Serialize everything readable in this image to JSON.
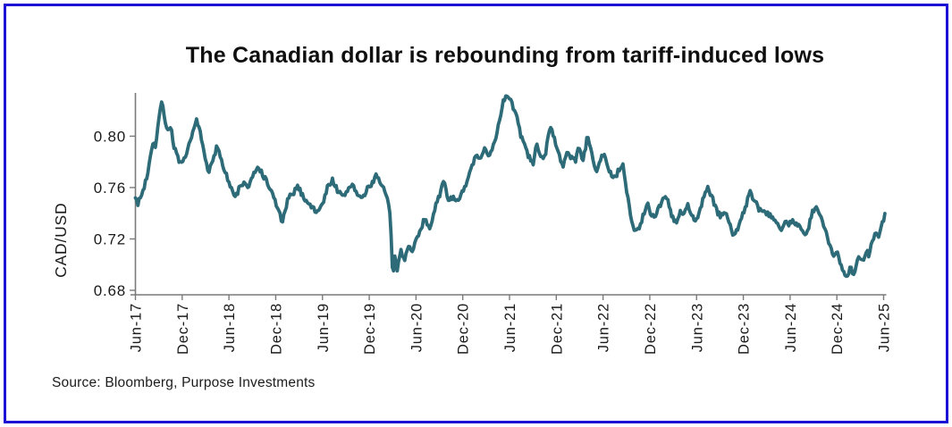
{
  "frame": {
    "border_color": "#1c12d6",
    "background": "#ffffff"
  },
  "chart": {
    "title": "The Canadian dollar is rebounding from tariff-induced lows",
    "y_axis_title": "CAD/USD",
    "source": "Source: Bloomberg, Purpose Investments"
  },
  "chart_data": {
    "type": "line",
    "title": "The Canadian dollar is rebounding from tariff-induced lows",
    "xlabel": "",
    "ylabel": "CAD/USD",
    "x_tick_labels": [
      "Jun-17",
      "Dec-17",
      "Jun-18",
      "Dec-18",
      "Jun-19",
      "Dec-19",
      "Jun-20",
      "Dec-20",
      "Jun-21",
      "Dec-21",
      "Jun-22",
      "Dec-22",
      "Jun-23",
      "Dec-23",
      "Jun-24",
      "Dec-24",
      "Jun-25"
    ],
    "y_tick_labels": [
      "0.68",
      "0.72",
      "0.76",
      "0.80"
    ],
    "y_ticks": [
      0.68,
      0.72,
      0.76,
      0.8
    ],
    "ylim": [
      0.6765,
      0.8337
    ],
    "x_range": [
      "Jun-2017",
      "Jun-2025"
    ],
    "x_unit": "months since Jun-2017 (ticks every 6 months)",
    "grid": false,
    "legend": false,
    "line_color": "#2e6b78",
    "axis_color": "#7a7a7a",
    "tick_label_color": "#1a1a1a",
    "series": [
      {
        "name": "CAD/USD spot rate",
        "points": [
          [
            0,
            0.752
          ],
          [
            0.4,
            0.748
          ],
          [
            1.0,
            0.758
          ],
          [
            1.6,
            0.772
          ],
          [
            2.2,
            0.796
          ],
          [
            2.6,
            0.792
          ],
          [
            3.0,
            0.812
          ],
          [
            3.4,
            0.83
          ],
          [
            3.8,
            0.812
          ],
          [
            4.1,
            0.803
          ],
          [
            4.5,
            0.809
          ],
          [
            4.9,
            0.793
          ],
          [
            5.4,
            0.784
          ],
          [
            5.9,
            0.777
          ],
          [
            6.4,
            0.783
          ],
          [
            6.9,
            0.793
          ],
          [
            7.3,
            0.801
          ],
          [
            7.7,
            0.813
          ],
          [
            8.2,
            0.806
          ],
          [
            8.8,
            0.787
          ],
          [
            9.4,
            0.772
          ],
          [
            10.0,
            0.781
          ],
          [
            10.5,
            0.793
          ],
          [
            11.0,
            0.783
          ],
          [
            11.5,
            0.773
          ],
          [
            12.0,
            0.764
          ],
          [
            12.7,
            0.752
          ],
          [
            13.3,
            0.759
          ],
          [
            13.9,
            0.764
          ],
          [
            14.5,
            0.76
          ],
          [
            15.1,
            0.769
          ],
          [
            15.8,
            0.776
          ],
          [
            16.4,
            0.769
          ],
          [
            17.1,
            0.761
          ],
          [
            17.7,
            0.753
          ],
          [
            18.3,
            0.743
          ],
          [
            18.9,
            0.733
          ],
          [
            19.5,
            0.749
          ],
          [
            20.2,
            0.756
          ],
          [
            20.9,
            0.761
          ],
          [
            21.5,
            0.753
          ],
          [
            22.1,
            0.749
          ],
          [
            22.7,
            0.744
          ],
          [
            23.3,
            0.741
          ],
          [
            24.0,
            0.747
          ],
          [
            24.7,
            0.761
          ],
          [
            25.3,
            0.766
          ],
          [
            26.0,
            0.757
          ],
          [
            26.6,
            0.752
          ],
          [
            27.2,
            0.758
          ],
          [
            27.9,
            0.763
          ],
          [
            28.5,
            0.754
          ],
          [
            29.1,
            0.751
          ],
          [
            29.7,
            0.758
          ],
          [
            30.3,
            0.763
          ],
          [
            30.9,
            0.77
          ],
          [
            31.5,
            0.764
          ],
          [
            32.0,
            0.756
          ],
          [
            32.4,
            0.75
          ],
          [
            32.7,
            0.736
          ],
          [
            33.0,
            0.691
          ],
          [
            33.3,
            0.706
          ],
          [
            33.6,
            0.694
          ],
          [
            34.0,
            0.712
          ],
          [
            34.5,
            0.704
          ],
          [
            35.0,
            0.716
          ],
          [
            35.5,
            0.709
          ],
          [
            36.0,
            0.719
          ],
          [
            36.6,
            0.729
          ],
          [
            37.2,
            0.735
          ],
          [
            37.8,
            0.729
          ],
          [
            38.4,
            0.744
          ],
          [
            39.0,
            0.752
          ],
          [
            39.6,
            0.766
          ],
          [
            40.2,
            0.749
          ],
          [
            40.8,
            0.754
          ],
          [
            41.4,
            0.748
          ],
          [
            42.0,
            0.756
          ],
          [
            42.6,
            0.765
          ],
          [
            43.1,
            0.775
          ],
          [
            43.7,
            0.785
          ],
          [
            44.2,
            0.781
          ],
          [
            44.8,
            0.79
          ],
          [
            45.4,
            0.785
          ],
          [
            46.0,
            0.795
          ],
          [
            46.5,
            0.805
          ],
          [
            46.9,
            0.818
          ],
          [
            47.2,
            0.829
          ],
          [
            48.0,
            0.831
          ],
          [
            48.4,
            0.824
          ],
          [
            48.9,
            0.815
          ],
          [
            49.4,
            0.802
          ],
          [
            49.9,
            0.794
          ],
          [
            50.5,
            0.783
          ],
          [
            51.0,
            0.779
          ],
          [
            51.5,
            0.793
          ],
          [
            52.0,
            0.786
          ],
          [
            52.5,
            0.782
          ],
          [
            53.0,
            0.8
          ],
          [
            53.4,
            0.808
          ],
          [
            53.9,
            0.795
          ],
          [
            54.4,
            0.784
          ],
          [
            54.9,
            0.775
          ],
          [
            55.4,
            0.789
          ],
          [
            55.9,
            0.784
          ],
          [
            56.4,
            0.781
          ],
          [
            56.9,
            0.791
          ],
          [
            57.4,
            0.782
          ],
          [
            58.0,
            0.799
          ],
          [
            58.6,
            0.785
          ],
          [
            59.2,
            0.772
          ],
          [
            59.7,
            0.784
          ],
          [
            60.2,
            0.786
          ],
          [
            60.8,
            0.772
          ],
          [
            61.4,
            0.766
          ],
          [
            62.0,
            0.773
          ],
          [
            62.5,
            0.778
          ],
          [
            63.0,
            0.76
          ],
          [
            63.5,
            0.74
          ],
          [
            64.0,
            0.726
          ],
          [
            64.8,
            0.731
          ],
          [
            65.2,
            0.739
          ],
          [
            65.7,
            0.749
          ],
          [
            66.2,
            0.737
          ],
          [
            66.8,
            0.74
          ],
          [
            67.3,
            0.746
          ],
          [
            67.8,
            0.753
          ],
          [
            68.3,
            0.749
          ],
          [
            68.9,
            0.736
          ],
          [
            69.4,
            0.732
          ],
          [
            69.9,
            0.741
          ],
          [
            70.4,
            0.739
          ],
          [
            70.9,
            0.746
          ],
          [
            71.4,
            0.737
          ],
          [
            71.9,
            0.734
          ],
          [
            72.4,
            0.742
          ],
          [
            72.9,
            0.753
          ],
          [
            73.4,
            0.76
          ],
          [
            74.0,
            0.752
          ],
          [
            74.5,
            0.742
          ],
          [
            75.1,
            0.738
          ],
          [
            75.6,
            0.742
          ],
          [
            76.2,
            0.732
          ],
          [
            76.8,
            0.722
          ],
          [
            77.3,
            0.729
          ],
          [
            77.9,
            0.739
          ],
          [
            78.4,
            0.747
          ],
          [
            78.9,
            0.757
          ],
          [
            79.4,
            0.749
          ],
          [
            79.9,
            0.744
          ],
          [
            80.5,
            0.741
          ],
          [
            81.1,
            0.739
          ],
          [
            81.8,
            0.737
          ],
          [
            82.4,
            0.731
          ],
          [
            82.9,
            0.728
          ],
          [
            83.4,
            0.735
          ],
          [
            84.0,
            0.732
          ],
          [
            84.6,
            0.734
          ],
          [
            85.2,
            0.73
          ],
          [
            85.8,
            0.723
          ],
          [
            86.3,
            0.726
          ],
          [
            86.9,
            0.742
          ],
          [
            87.4,
            0.744
          ],
          [
            87.9,
            0.738
          ],
          [
            88.4,
            0.728
          ],
          [
            88.9,
            0.718
          ],
          [
            89.3,
            0.712
          ],
          [
            89.7,
            0.706
          ],
          [
            90.1,
            0.711
          ],
          [
            90.5,
            0.701
          ],
          [
            90.9,
            0.694
          ],
          [
            91.3,
            0.691
          ],
          [
            91.7,
            0.698
          ],
          [
            92.1,
            0.691
          ],
          [
            92.5,
            0.7
          ],
          [
            92.9,
            0.708
          ],
          [
            93.3,
            0.702
          ],
          [
            93.7,
            0.711
          ],
          [
            94.1,
            0.708
          ],
          [
            94.5,
            0.717
          ],
          [
            94.9,
            0.725
          ],
          [
            95.3,
            0.721
          ],
          [
            95.7,
            0.73
          ],
          [
            96.0,
            0.735
          ],
          [
            96.2,
            0.741
          ]
        ]
      }
    ]
  }
}
